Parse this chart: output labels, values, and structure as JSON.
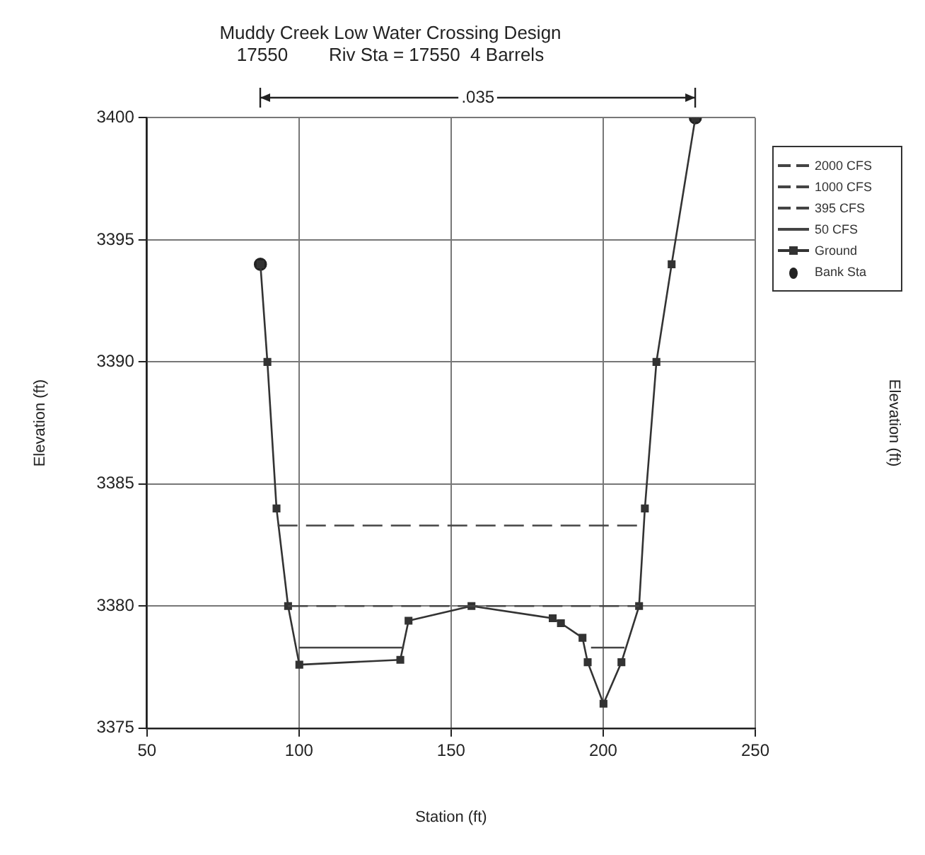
{
  "chart_data": {
    "type": "line",
    "title": "Muddy Creek Low Water Crossing Design",
    "subtitle": "17550        Riv Sta = 17550  4 Barrels",
    "xlabel": "Station (ft)",
    "ylabel": "Elevation (ft)",
    "xlim": [
      50,
      250
    ],
    "xticks": [
      50,
      100,
      150,
      200,
      250
    ],
    "ylim": [
      3375,
      3400
    ],
    "yticks": [
      3375,
      3380,
      3385,
      3390,
      3395,
      3400
    ],
    "grid": true,
    "legend": "top right",
    "annotations": [
      ".035",
      "Elevation (ft)"
    ],
    "series": [
      {
        "name": "2000 CFS",
        "type": "line",
        "color": "#444444",
        "line_style": "dashed",
        "marker": "none",
        "x": [
          93,
          213.5
        ],
        "values": [
          3383.3,
          3383.3
        ]
      },
      {
        "name": "1000 CFS",
        "type": "line",
        "color": "#444444",
        "line_style": "dashed",
        "marker": "none"
      },
      {
        "name": "395 CFS",
        "type": "line",
        "color": "#444444",
        "line_style": "dashed",
        "marker": "none",
        "x": [
          96.4,
          211.8
        ],
        "values": [
          3380,
          3380
        ]
      },
      {
        "name": "50 CFS",
        "type": "line",
        "color": "#444444",
        "line_style": "solid",
        "marker": "none",
        "x": [
          100,
          134.5,
          150,
          196,
          207
        ],
        "values": [
          3378.3,
          3378.3,
          null,
          3378.3,
          3378.3
        ]
      },
      {
        "name": "Ground",
        "type": "line",
        "color": "#333333",
        "line_style": "solid",
        "marker": "square",
        "x": [
          87.3,
          89.6,
          92.6,
          96.4,
          100.1,
          133.3,
          136.0,
          156.7,
          183.4,
          186.1,
          193.2,
          194.9,
          200.1,
          206.0,
          211.8,
          213.7,
          217.5,
          222.5,
          230.3
        ],
        "values": [
          3394,
          3390,
          3384,
          3380,
          3377.6,
          3377.8,
          3379.4,
          3380,
          3379.5,
          3379.3,
          3378.7,
          3377.7,
          3376,
          3377.7,
          3380,
          3384,
          3390,
          3394,
          3400
        ]
      },
      {
        "name": "Bank Sta",
        "type": "scatter",
        "color": "#222222",
        "marker": "circle",
        "x": [
          87.3,
          230.3
        ],
        "values": [
          3394,
          3400
        ]
      }
    ]
  }
}
